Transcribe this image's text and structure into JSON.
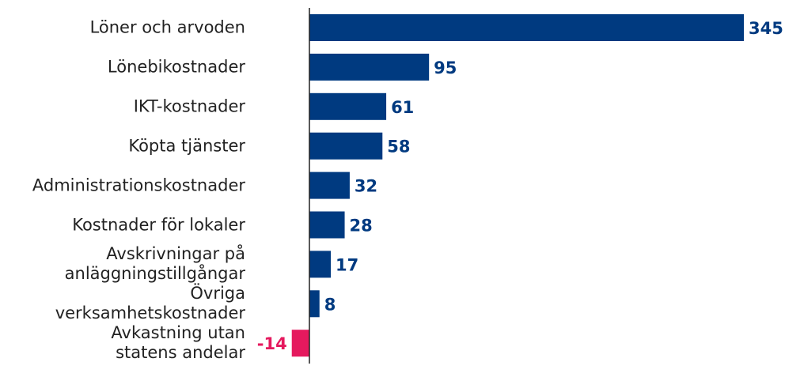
{
  "chart_data": {
    "type": "bar",
    "orientation": "horizontal",
    "categories": [
      "Löner och arvoden",
      "Lönebikostnader",
      "IKT-kostnader",
      "Köpta tjänster",
      "Administrationskostnader",
      "Kostnader för lokaler",
      "Avskrivningar på\nanläggningstillgångar",
      "Övriga\nverksamhetskostnader",
      "Avkastning utan\nstatens andelar"
    ],
    "values": [
      345,
      95,
      61,
      58,
      32,
      28,
      17,
      8,
      -14
    ],
    "color": "#003a80",
    "negative_color": "#e5195e"
  }
}
